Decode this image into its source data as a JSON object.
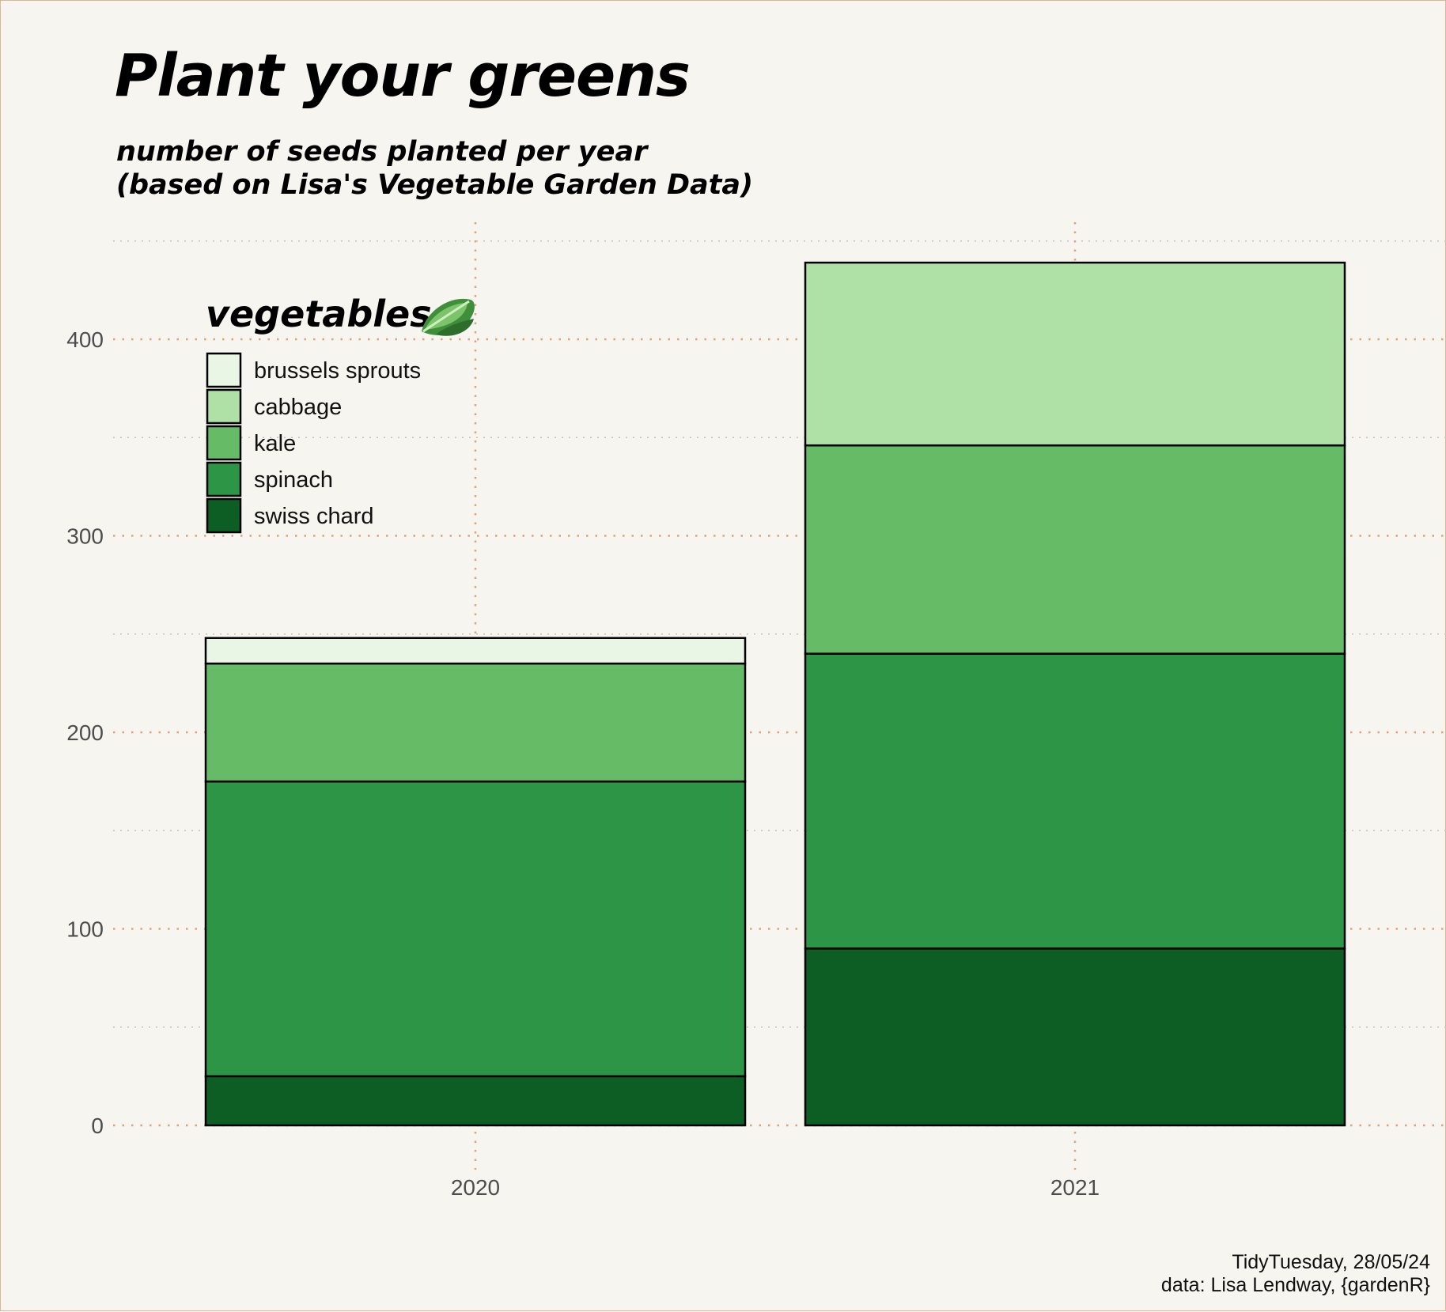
{
  "title": "Plant your greens",
  "subtitle_line1": "number of seeds planted per year",
  "subtitle_line2": "(based on Lisa's Vegetable Garden Data)",
  "caption_line1": "TidyTuesday, 28/05/24",
  "caption_line2": "data: Lisa Lendway, {gardenR}",
  "legend": {
    "title": "vegetables",
    "icon": "leafy-green-icon"
  },
  "colors": {
    "background": "#f6f5f0",
    "grid": "#e0a474",
    "brussels sprouts": "#eaf6e5",
    "cabbage": "#afe0a6",
    "kale": "#66bb66",
    "spinach": "#2c9546",
    "swiss chard": "#0d5e24"
  },
  "chart_data": {
    "type": "bar",
    "stacked": true,
    "title": "Plant your greens",
    "subtitle": "number of seeds planted per year\n(based on Lisa's Vegetable Garden Data)",
    "xlabel": "",
    "ylabel": "",
    "categories": [
      "2020",
      "2021"
    ],
    "ylim": [
      0,
      455
    ],
    "yticks": [
      0,
      100,
      200,
      300,
      400
    ],
    "grid": true,
    "legend_position": "top-left",
    "series": [
      {
        "name": "swiss chard",
        "values": [
          25,
          90
        ]
      },
      {
        "name": "spinach",
        "values": [
          150,
          150
        ]
      },
      {
        "name": "kale",
        "values": [
          60,
          106
        ]
      },
      {
        "name": "cabbage",
        "values": [
          0,
          93
        ]
      },
      {
        "name": "brussels sprouts",
        "values": [
          13,
          0
        ]
      }
    ],
    "legend_order": [
      "brussels sprouts",
      "cabbage",
      "kale",
      "spinach",
      "swiss chard"
    ]
  }
}
